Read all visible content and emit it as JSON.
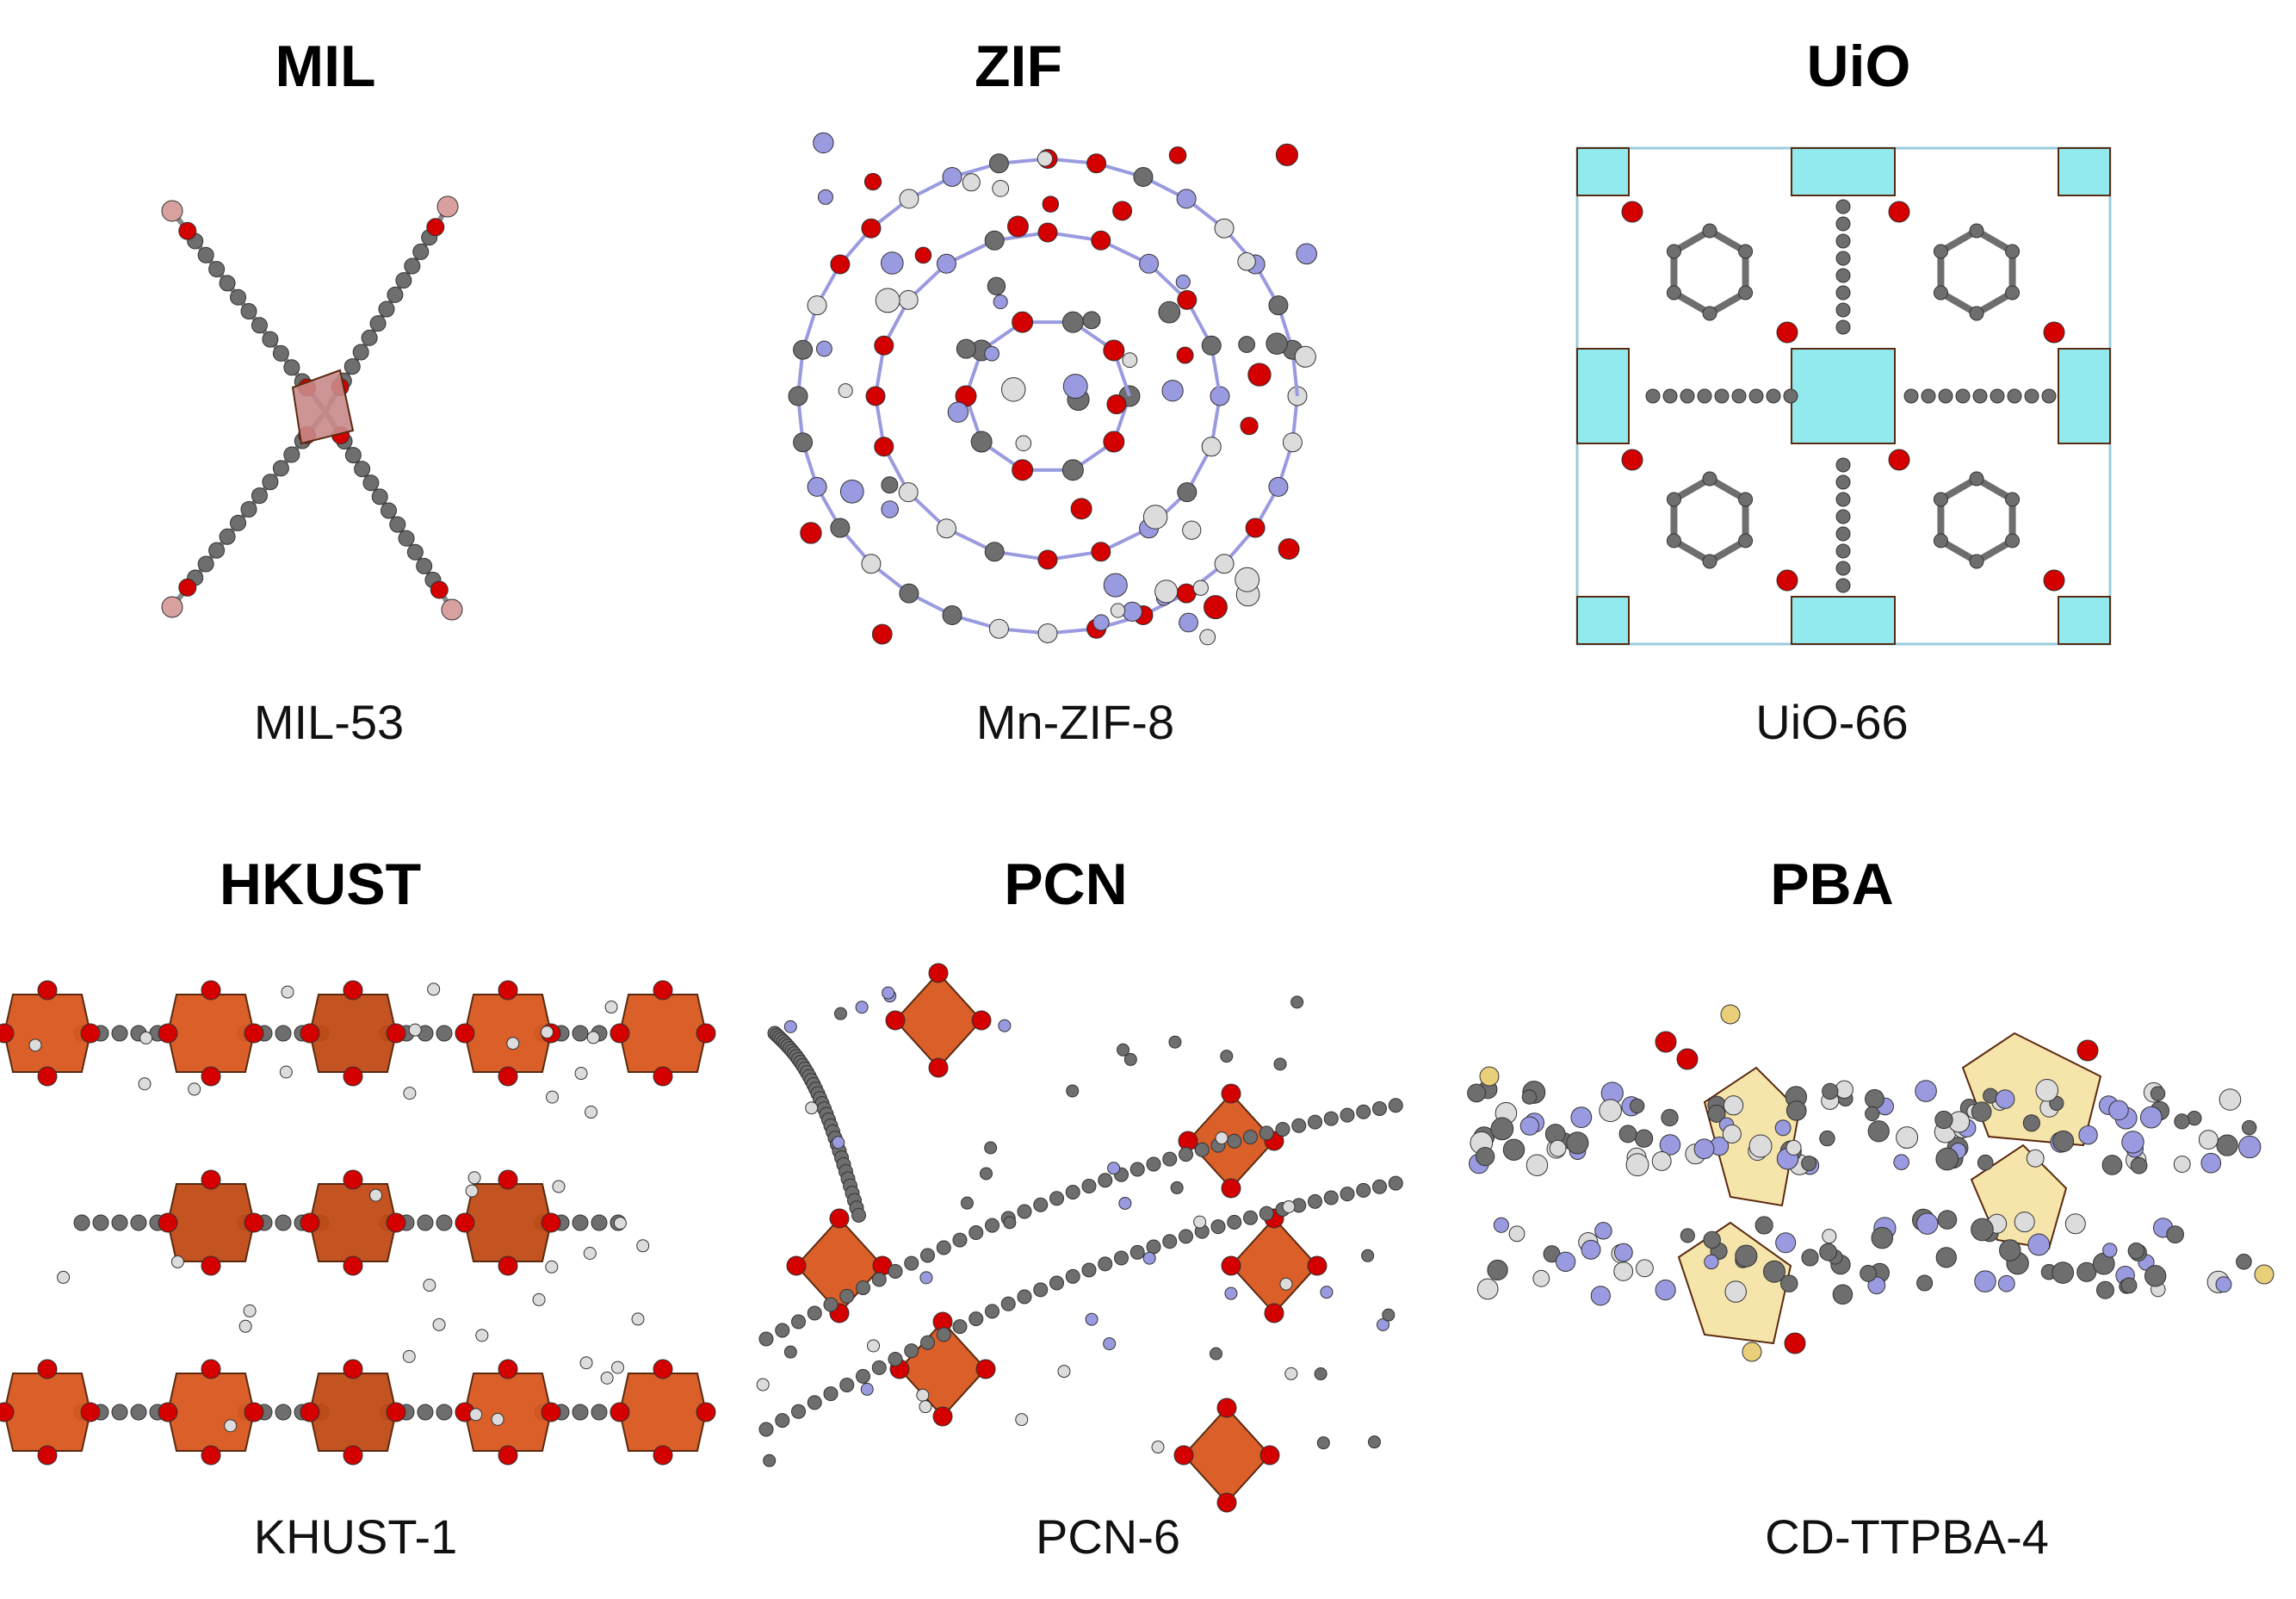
{
  "panels": [
    {
      "title": "MIL",
      "caption": "MIL-53"
    },
    {
      "title": "ZIF",
      "caption": "Mn-ZIF-8"
    },
    {
      "title": "UiO",
      "caption": "UiO-66"
    },
    {
      "title": "HKUST",
      "caption": "KHUST-1"
    },
    {
      "title": "PCN",
      "caption": "PCN-6"
    },
    {
      "title": "PBA",
      "caption": "CD-TTPBA-4"
    }
  ]
}
